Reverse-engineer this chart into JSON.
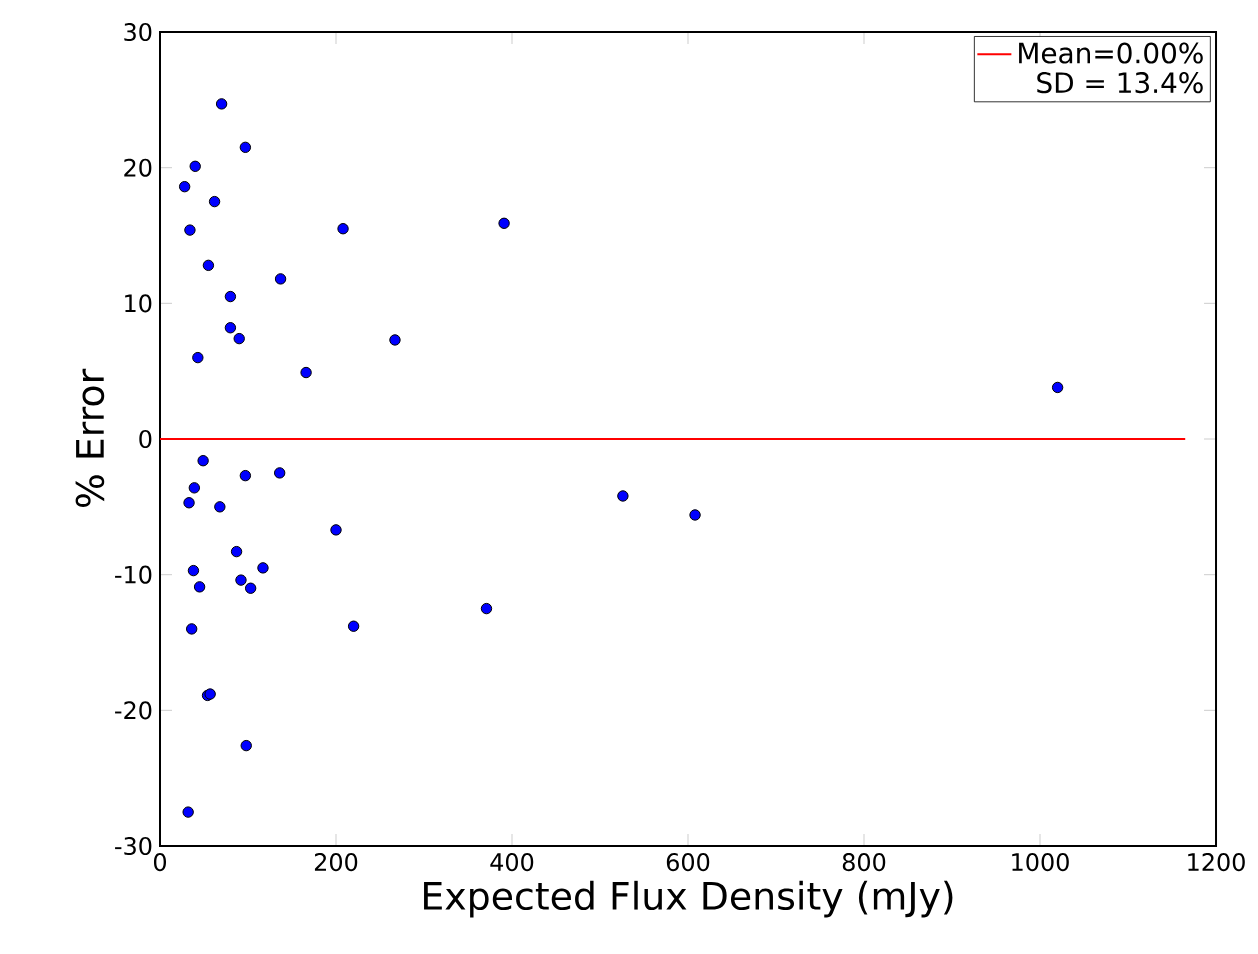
{
  "chart_data": {
    "type": "scatter",
    "xlabel": "Expected Flux Density (mJy)",
    "ylabel": "% Error",
    "xlim": [
      0,
      1200
    ],
    "ylim": [
      -30,
      30
    ],
    "xticks": [
      0,
      200,
      400,
      600,
      800,
      1000,
      1200
    ],
    "yticks": [
      -30,
      -20,
      -10,
      0,
      10,
      20,
      30
    ],
    "grid": false,
    "legend": "top right",
    "annotations": [
      "SD = 13.4%"
    ],
    "series": [
      {
        "color": "#0000ff",
        "marker": "circle",
        "x": [
          70,
          97,
          40,
          28,
          62,
          34,
          208,
          391,
          55,
          137,
          80,
          80,
          90,
          267,
          43,
          166,
          1020,
          49,
          39,
          33,
          97,
          136,
          68,
          200,
          87,
          38,
          117,
          45,
          92,
          103,
          36,
          220,
          371,
          54,
          57,
          98,
          32,
          526,
          608
        ],
        "values": [
          24.7,
          21.5,
          20.1,
          18.6,
          17.5,
          15.4,
          15.5,
          15.9,
          12.8,
          11.8,
          10.5,
          8.2,
          7.4,
          7.3,
          6.0,
          4.9,
          3.8,
          -1.6,
          -3.6,
          -4.7,
          -2.7,
          -2.5,
          -5.0,
          -6.7,
          -8.3,
          -9.7,
          -9.5,
          -10.9,
          -10.4,
          -11.0,
          -14.0,
          -13.8,
          -12.5,
          -18.9,
          -18.8,
          -22.6,
          -27.5,
          -4.2,
          -5.6
        ]
      },
      {
        "type": "line",
        "marker": "none",
        "name": "Mean=0.00%",
        "color": "#ff0000",
        "x": [
          0,
          1165
        ],
        "values": [
          0,
          0
        ]
      }
    ]
  }
}
